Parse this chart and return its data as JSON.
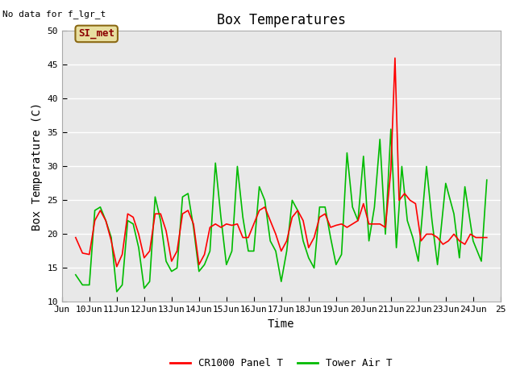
{
  "title": "Box Temperatures",
  "xlabel": "Time",
  "ylabel": "Box Temperature (C)",
  "ylim": [
    10,
    50
  ],
  "xlim": [
    9,
    25
  ],
  "xtick_labels": [
    "Jun",
    "10Jun",
    "11Jun",
    "12Jun",
    "13Jun",
    "14Jun",
    "15Jun",
    "16Jun",
    "17Jun",
    "18Jun",
    "19Jun",
    "20Jun",
    "21Jun",
    "22Jun",
    "23Jun",
    "24Jun",
    "25"
  ],
  "xtick_positions": [
    9,
    10,
    11,
    12,
    13,
    14,
    15,
    16,
    17,
    18,
    19,
    20,
    21,
    22,
    23,
    24,
    25
  ],
  "ytick_positions": [
    10,
    15,
    20,
    25,
    30,
    35,
    40,
    45,
    50
  ],
  "fig_bg_color": "#ffffff",
  "plot_bg_color": "#e8e8e8",
  "grid_color": "#ffffff",
  "no_data_text": "No data for f_lgr_t",
  "si_met_label": "SI_met",
  "legend_entries": [
    "CR1000 Panel T",
    "Tower Air T"
  ],
  "legend_colors": [
    "#ff0000",
    "#00bb00"
  ],
  "title_fontsize": 12,
  "axis_label_fontsize": 10,
  "tick_fontsize": 8,
  "red_x": [
    9.5,
    9.75,
    10.0,
    10.2,
    10.4,
    10.6,
    10.8,
    11.0,
    11.2,
    11.4,
    11.6,
    11.8,
    12.0,
    12.2,
    12.4,
    12.6,
    12.8,
    13.0,
    13.2,
    13.4,
    13.6,
    13.8,
    14.0,
    14.2,
    14.4,
    14.6,
    14.8,
    15.0,
    15.2,
    15.4,
    15.6,
    15.8,
    16.0,
    16.2,
    16.4,
    16.6,
    16.8,
    17.0,
    17.2,
    17.4,
    17.6,
    17.8,
    18.0,
    18.2,
    18.4,
    18.6,
    18.8,
    19.0,
    19.2,
    19.4,
    19.6,
    19.8,
    20.0,
    20.2,
    20.4,
    20.6,
    20.8,
    21.0,
    21.15,
    21.3,
    21.5,
    21.7,
    21.9,
    22.1,
    22.3,
    22.5,
    22.7,
    22.9,
    23.1,
    23.3,
    23.5,
    23.7,
    23.9,
    24.1,
    24.3,
    24.5
  ],
  "red_y": [
    19.5,
    17.2,
    17.0,
    22.0,
    23.5,
    22.0,
    19.0,
    15.2,
    17.0,
    23.0,
    22.5,
    20.0,
    16.5,
    17.5,
    23.0,
    23.0,
    20.5,
    16.0,
    17.5,
    23.0,
    23.5,
    21.5,
    15.5,
    17.0,
    21.0,
    21.5,
    21.0,
    21.5,
    21.3,
    21.5,
    19.5,
    19.5,
    21.5,
    23.5,
    24.0,
    22.0,
    20.0,
    17.5,
    19.0,
    22.5,
    23.5,
    22.0,
    18.0,
    19.5,
    22.5,
    23.0,
    21.0,
    21.3,
    21.5,
    21.0,
    21.5,
    22.0,
    24.5,
    21.5,
    21.5,
    21.5,
    21.0,
    29.5,
    46.0,
    25.0,
    26.0,
    25.0,
    24.5,
    19.0,
    20.0,
    20.0,
    19.5,
    18.5,
    19.0,
    20.0,
    19.0,
    18.5,
    20.0,
    19.5,
    19.5,
    19.5
  ],
  "green_x": [
    9.5,
    9.75,
    10.0,
    10.2,
    10.4,
    10.6,
    10.8,
    11.0,
    11.2,
    11.4,
    11.6,
    11.8,
    12.0,
    12.2,
    12.4,
    12.6,
    12.8,
    13.0,
    13.2,
    13.4,
    13.6,
    13.8,
    14.0,
    14.2,
    14.4,
    14.6,
    14.8,
    15.0,
    15.2,
    15.4,
    15.6,
    15.8,
    16.0,
    16.2,
    16.4,
    16.6,
    16.8,
    17.0,
    17.2,
    17.4,
    17.6,
    17.8,
    18.0,
    18.2,
    18.4,
    18.6,
    18.8,
    19.0,
    19.2,
    19.4,
    19.6,
    19.8,
    20.0,
    20.2,
    20.4,
    20.6,
    20.8,
    21.0,
    21.2,
    21.4,
    21.6,
    21.8,
    22.0,
    22.3,
    22.5,
    22.7,
    23.0,
    23.3,
    23.5,
    23.7,
    24.0,
    24.3,
    24.5
  ],
  "green_y": [
    14.0,
    12.5,
    12.5,
    23.5,
    24.0,
    22.0,
    19.5,
    11.5,
    12.5,
    22.0,
    21.5,
    18.0,
    12.0,
    13.0,
    25.5,
    22.0,
    16.0,
    14.5,
    15.0,
    25.5,
    26.0,
    21.0,
    14.5,
    15.5,
    17.5,
    30.5,
    22.5,
    15.5,
    17.5,
    30.0,
    22.5,
    17.5,
    17.5,
    27.0,
    25.0,
    19.0,
    17.5,
    13.0,
    17.5,
    25.0,
    23.5,
    19.0,
    16.5,
    15.0,
    24.0,
    24.0,
    19.5,
    15.5,
    17.0,
    32.0,
    24.0,
    22.0,
    31.5,
    19.0,
    24.0,
    34.0,
    20.0,
    35.5,
    18.0,
    30.0,
    22.0,
    19.5,
    16.0,
    30.0,
    22.0,
    15.5,
    27.5,
    23.0,
    16.5,
    27.0,
    19.0,
    16.0,
    28.0
  ]
}
